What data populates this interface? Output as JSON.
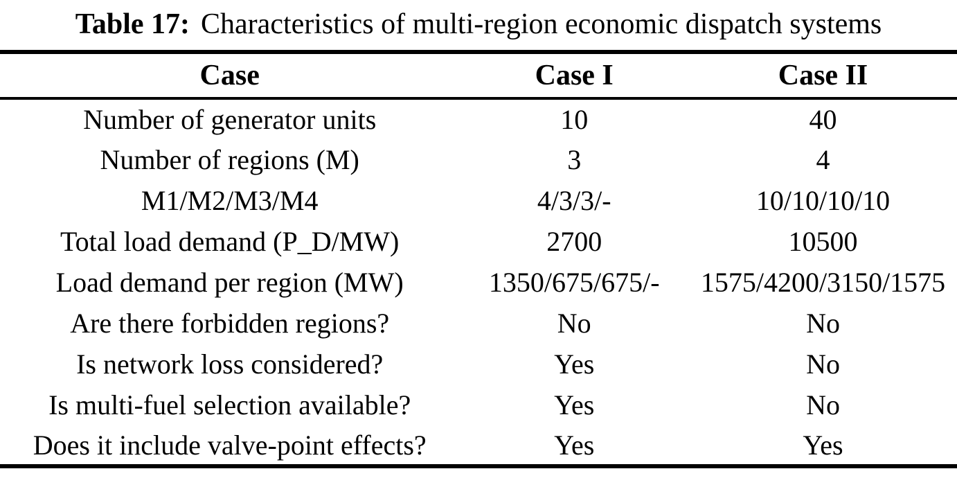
{
  "caption": {
    "label": "Table 17:",
    "text": "Characteristics of multi-region economic dispatch systems"
  },
  "table": {
    "columns": [
      "Case",
      "Case I",
      "Case II"
    ],
    "rows": [
      {
        "label": "Number of generator units",
        "case1": "10",
        "case2": "40"
      },
      {
        "label": "Number of regions (M)",
        "case1": "3",
        "case2": "4"
      },
      {
        "label": "M1/M2/M3/M4",
        "case1": "4/3/3/-",
        "case2": "10/10/10/10"
      },
      {
        "label": "Total load demand (P_D/MW)",
        "case1": "2700",
        "case2": "10500"
      },
      {
        "label": "Load demand per region (MW)",
        "case1": "1350/675/675/-",
        "case2": "1575/4200/3150/1575"
      },
      {
        "label": "Are there forbidden regions?",
        "case1": "No",
        "case2": "No"
      },
      {
        "label": "Is network loss considered?",
        "case1": "Yes",
        "case2": "No"
      },
      {
        "label": "Is multi-fuel selection available?",
        "case1": "Yes",
        "case2": "No"
      },
      {
        "label": "Does it include valve-point effects?",
        "case1": "Yes",
        "case2": "Yes"
      }
    ]
  },
  "colors": {
    "text": "#000000",
    "background": "#ffffff",
    "rule": "#000000"
  }
}
